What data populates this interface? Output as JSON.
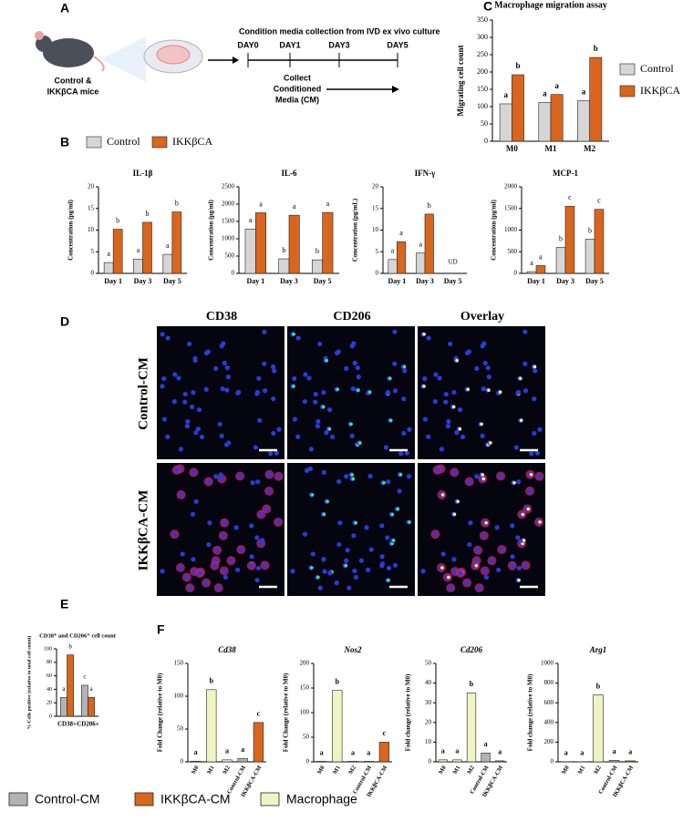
{
  "panel_a": {
    "label": "A",
    "title": "Condition media collection from IVD ex vivo culture",
    "mouse_label": [
      "Control &",
      "IKKβCA mice"
    ],
    "days": [
      "DAY0",
      "DAY1",
      "DAY3",
      "DAY5"
    ],
    "step": [
      "Collect",
      "Conditioned",
      "Media (CM)"
    ]
  },
  "panel_labels": {
    "b": "B",
    "c": "C",
    "d": "D",
    "e": "E",
    "f": "F"
  },
  "panel_d": {
    "columns": [
      "CD38",
      "CD206",
      "Overlay"
    ],
    "rows": [
      "Control-CM",
      "IKKβCA-CM"
    ]
  },
  "legend": [
    {
      "name": "Control-CM",
      "color": "#b3b3b3"
    },
    {
      "name": "IKKβCA-CM",
      "color": "#d9661e"
    },
    {
      "name": "Macrophage",
      "color": "#eef5c2"
    }
  ],
  "chart_data": [
    {
      "type": "bar",
      "title": "Macrophage migration assay",
      "ylabel": "Migrating cell count",
      "categories": [
        "M0",
        "M1",
        "M2"
      ],
      "series": [
        {
          "name": "Control",
          "color": "#d6d6d6",
          "values": [
            108,
            112,
            117
          ],
          "letters": [
            "a",
            "a",
            "a"
          ]
        },
        {
          "name": "IKKβCA",
          "color": "#d9661e",
          "values": [
            192,
            135,
            242
          ],
          "letters": [
            "b",
            "a",
            "b"
          ]
        }
      ],
      "ylim": [
        0,
        350
      ],
      "yticks": [
        0,
        50,
        100,
        150,
        200,
        250,
        300,
        350
      ]
    },
    {
      "type": "bar",
      "title": "IL-1β",
      "ylabel": "Concentration (pg/ml)",
      "categories": [
        "Day 1",
        "Day 3",
        "Day 5"
      ],
      "series": [
        {
          "name": "Control",
          "color": "#d6d6d6",
          "values": [
            2.5,
            3.3,
            4.4
          ],
          "letters": [
            "a",
            "a",
            "a"
          ]
        },
        {
          "name": "IKKβCA",
          "color": "#d9661e",
          "values": [
            10.2,
            11.8,
            14.2
          ],
          "letters": [
            "b",
            "b",
            "b"
          ]
        }
      ],
      "ylim": [
        0,
        20
      ],
      "yticks": [
        0,
        5,
        10,
        15,
        20
      ]
    },
    {
      "type": "bar",
      "title": "IL-6",
      "ylabel": "Concentration (pg/ml)",
      "categories": [
        "Day 1",
        "Day 3",
        "Day 5"
      ],
      "series": [
        {
          "name": "Control",
          "color": "#d6d6d6",
          "values": [
            1280,
            420,
            390
          ],
          "letters": [
            "a",
            "b",
            "b"
          ]
        },
        {
          "name": "IKKβCA",
          "color": "#d9661e",
          "values": [
            1750,
            1680,
            1760
          ],
          "letters": [
            "a",
            "a",
            "a"
          ]
        }
      ],
      "ylim": [
        0,
        2500
      ],
      "yticks": [
        0,
        500,
        1000,
        1500,
        2000,
        2500
      ]
    },
    {
      "type": "bar",
      "title": "IFN-γ",
      "ylabel": "Concentration (pg/mL)",
      "categories": [
        "Day 1",
        "Day 3",
        "Day 5"
      ],
      "series": [
        {
          "name": "Control",
          "color": "#d6d6d6",
          "values": [
            3.2,
            4.7,
            0
          ],
          "letters": [
            "a",
            "a",
            null
          ]
        },
        {
          "name": "IKKβCA",
          "color": "#d9661e",
          "values": [
            7.3,
            13.7,
            0
          ],
          "letters": [
            "a",
            "b",
            null
          ]
        }
      ],
      "ylim": [
        0,
        20
      ],
      "yticks": [
        0,
        5,
        10,
        15,
        20
      ],
      "annotations": [
        {
          "label": "UD",
          "x": "Day 5"
        }
      ]
    },
    {
      "type": "bar",
      "title": "MCP-1",
      "ylabel": "Concentration (pg/ml)",
      "categories": [
        "Day 1",
        "Day 3",
        "Day 5"
      ],
      "series": [
        {
          "name": "Control",
          "color": "#d6d6d6",
          "values": [
            40,
            600,
            790
          ],
          "letters": [
            "a",
            "b",
            "b"
          ]
        },
        {
          "name": "IKKβCA",
          "color": "#d9661e",
          "values": [
            180,
            1550,
            1480
          ],
          "letters": [
            "a",
            "c",
            "c"
          ]
        }
      ],
      "ylim": [
        0,
        2000
      ],
      "yticks": [
        0,
        500,
        1000,
        1500,
        2000
      ]
    },
    {
      "type": "bar",
      "title": "CD38⁺ and CD206⁺ cell count",
      "ylabel": "% Cells positive (relative to total cell count)",
      "categories": [
        "CD38+",
        "CD206+"
      ],
      "series": [
        {
          "name": "Control-CM",
          "color": "#b3b3b3",
          "values": [
            28,
            46
          ],
          "letters": [
            "a",
            "c"
          ]
        },
        {
          "name": "IKKβCA-CM",
          "color": "#d9661e",
          "values": [
            91,
            28
          ],
          "letters": [
            "b",
            "a"
          ]
        }
      ],
      "ylim": [
        0,
        100
      ],
      "yticks": [
        0,
        20,
        40,
        60,
        80,
        100
      ]
    },
    {
      "type": "bar",
      "title": "Cd38",
      "ylabel": "Fold Change (relative to M0)",
      "categories": [
        "M0",
        "M1",
        "M2",
        "Control-CM",
        "IKKβCA-CM"
      ],
      "values": [
        1,
        110,
        3,
        5,
        60
      ],
      "colors": [
        "#eef5c2",
        "#eef5c2",
        "#eef5c2",
        "#b3b3b3",
        "#d9661e"
      ],
      "letters": [
        "a",
        "b",
        "a",
        "a",
        "c"
      ],
      "ylim": [
        0,
        150
      ],
      "yticks": [
        0,
        50,
        100,
        150
      ]
    },
    {
      "type": "bar",
      "title": "Nos2",
      "ylabel": "Fold Change (relative to M0)",
      "categories": [
        "M0",
        "M1",
        "M2",
        "Control-CM",
        "IKKβCA-CM"
      ],
      "values": [
        1,
        145,
        1,
        1,
        40
      ],
      "colors": [
        "#eef5c2",
        "#eef5c2",
        "#eef5c2",
        "#b3b3b3",
        "#d9661e"
      ],
      "letters": [
        "a",
        "b",
        "a",
        "a",
        "c"
      ],
      "ylim": [
        0,
        200
      ],
      "yticks": [
        0,
        50,
        100,
        150,
        200
      ]
    },
    {
      "type": "bar",
      "title": "Cd206",
      "ylabel": "Fold change (relative to M0)",
      "categories": [
        "M0",
        "M1",
        "M2",
        "Control-CM",
        "IKKβCA-CM"
      ],
      "values": [
        1,
        1,
        35,
        4.5,
        0.5
      ],
      "colors": [
        "#eef5c2",
        "#eef5c2",
        "#eef5c2",
        "#b3b3b3",
        "#d9661e"
      ],
      "letters": [
        "a",
        "a",
        "b",
        "a",
        "a"
      ],
      "ylim": [
        0,
        50
      ],
      "yticks": [
        0,
        10,
        20,
        30,
        40,
        50
      ]
    },
    {
      "type": "bar",
      "title": "Arg1",
      "ylabel": "Fold change (relative to M0)",
      "categories": [
        "M0",
        "M1",
        "M2",
        "Control-CM",
        "IKKβCA-CM"
      ],
      "values": [
        1,
        1,
        680,
        15,
        10
      ],
      "colors": [
        "#eef5c2",
        "#eef5c2",
        "#eef5c2",
        "#b3b3b3",
        "#d9661e"
      ],
      "letters": [
        "a",
        "a",
        "b",
        "a",
        "a"
      ],
      "ylim": [
        0,
        1000
      ],
      "yticks": [
        0,
        200,
        400,
        600,
        800,
        1000
      ]
    }
  ]
}
